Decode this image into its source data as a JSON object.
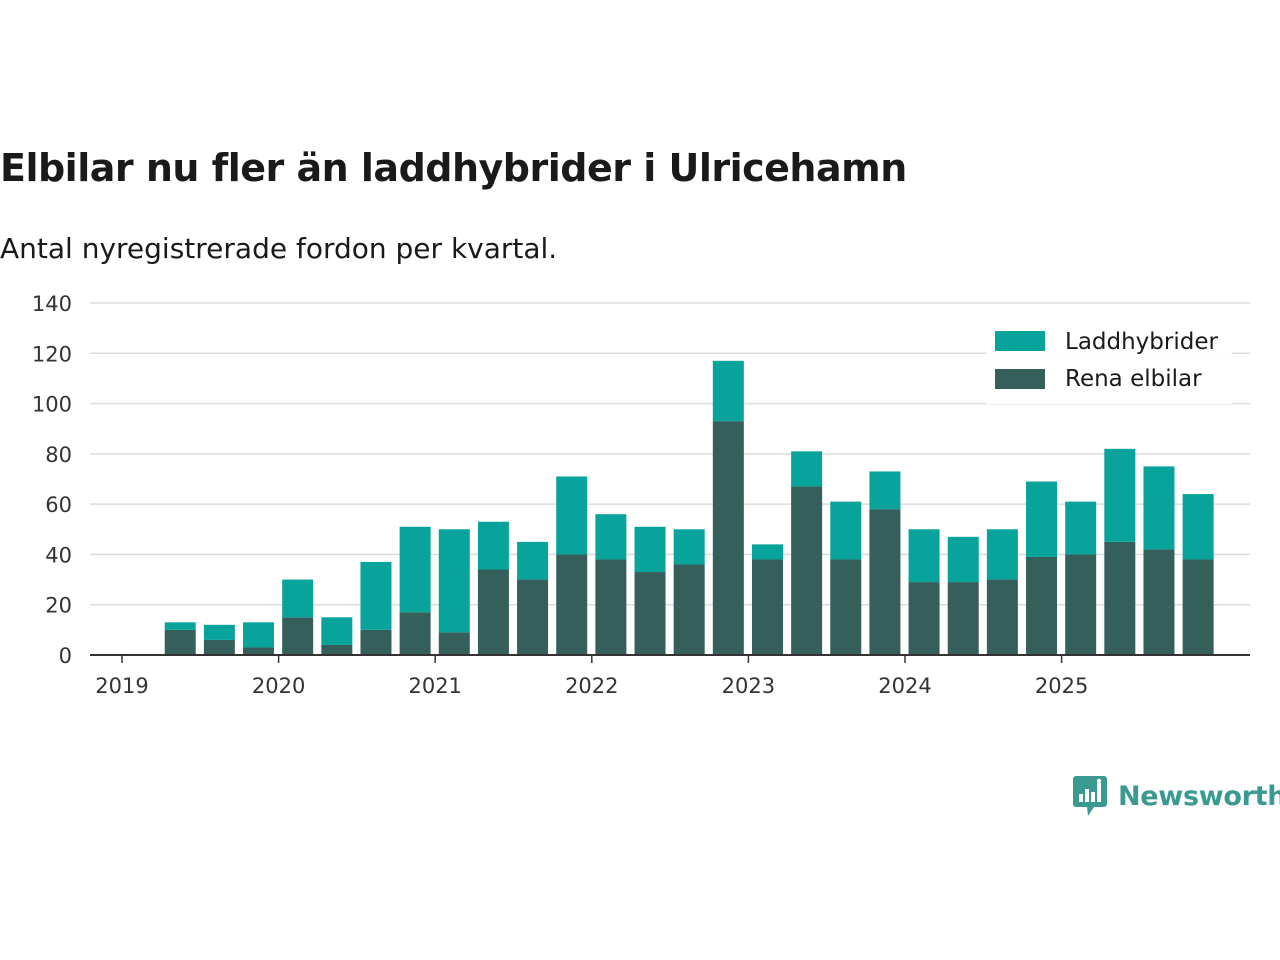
{
  "title": "Elbilar nu fler än laddhybrider i Ulricehamn",
  "subtitle": "Antal nyregistrerade fordon per kvartal.",
  "brand": "Newsworthy",
  "colors": {
    "laddhybrider": "#08a39b",
    "rena_elbilar": "#355f5b",
    "brand": "#3a9a92"
  },
  "chart_data": {
    "type": "bar",
    "stacked": true,
    "title": "Elbilar nu fler än laddhybrider i Ulricehamn",
    "subtitle": "Antal nyregistrerade fordon per kvartal.",
    "xlabel": "",
    "ylabel": "",
    "ylim": [
      0,
      140
    ],
    "yticks": [
      0,
      20,
      40,
      60,
      80,
      100,
      120,
      140
    ],
    "xtick_labels": [
      "2019",
      "2020",
      "2021",
      "2022",
      "2023",
      "2024",
      "2025"
    ],
    "grid": true,
    "legend_position": "top-right",
    "categories": [
      "2019 Q2",
      "2019 Q3",
      "2019 Q4",
      "2020 Q1",
      "2020 Q2",
      "2020 Q3",
      "2020 Q4",
      "2021 Q1",
      "2021 Q2",
      "2021 Q3",
      "2021 Q4",
      "2022 Q1",
      "2022 Q2",
      "2022 Q3",
      "2022 Q4",
      "2023 Q1",
      "2023 Q2",
      "2023 Q3",
      "2023 Q4",
      "2024 Q1",
      "2024 Q2",
      "2024 Q3",
      "2024 Q4",
      "2025 Q1",
      "2025 Q2",
      "2025 Q3",
      "2025 Q4"
    ],
    "series": [
      {
        "name": "Rena elbilar",
        "values": [
          10,
          6,
          3,
          15,
          4,
          10,
          17,
          9,
          34,
          30,
          40,
          38,
          33,
          36,
          93,
          38,
          67,
          38,
          58,
          29,
          29,
          30,
          39,
          40,
          45,
          42,
          38
        ]
      },
      {
        "name": "Laddhybrider",
        "values": [
          3,
          6,
          10,
          15,
          11,
          27,
          34,
          41,
          19,
          15,
          31,
          18,
          18,
          14,
          24,
          6,
          14,
          23,
          15,
          21,
          18,
          20,
          30,
          21,
          37,
          33,
          26
        ]
      }
    ],
    "legend": [
      "Laddhybrider",
      "Rena elbilar"
    ]
  }
}
